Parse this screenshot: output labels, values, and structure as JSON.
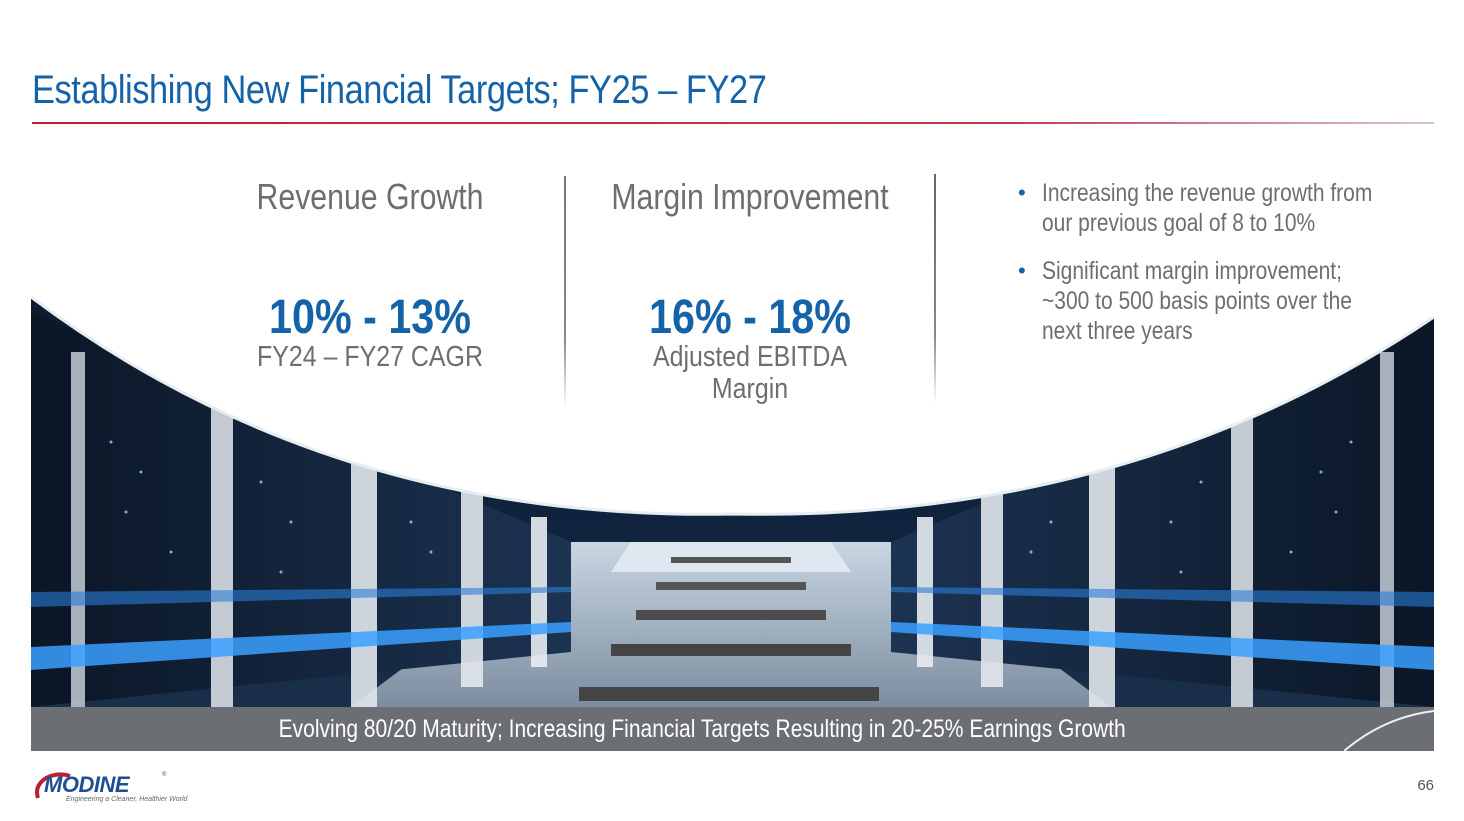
{
  "slide": {
    "title": "Establishing New Financial Targets; FY25 – FY27",
    "page_number": "66"
  },
  "metrics": [
    {
      "heading": "Revenue Growth",
      "value": "10% - 13%",
      "sub_line1": "FY24 – FY27 CAGR",
      "sub_line2": ""
    },
    {
      "heading": "Margin Improvement",
      "value": "16% - 18%",
      "sub_line1": "Adjusted EBITDA",
      "sub_line2": "Margin"
    }
  ],
  "bullets": [
    "Increasing the revenue growth from our previous goal of 8 to 10%",
    "Significant margin improvement; ~300 to 500 basis points over the next three years"
  ],
  "banner": {
    "text": "Evolving 80/20 Maturity; Increasing Financial Targets Resulting in 20-25% Earnings Growth"
  },
  "logo": {
    "wordmark": "MODINE",
    "tagline": "Engineering a Cleaner, Healthier World"
  },
  "colors": {
    "title_blue": "#1462a8",
    "rule_red": "#b92032",
    "text_gray": "#6d6e71",
    "banner_gray": "#6b6e72"
  }
}
